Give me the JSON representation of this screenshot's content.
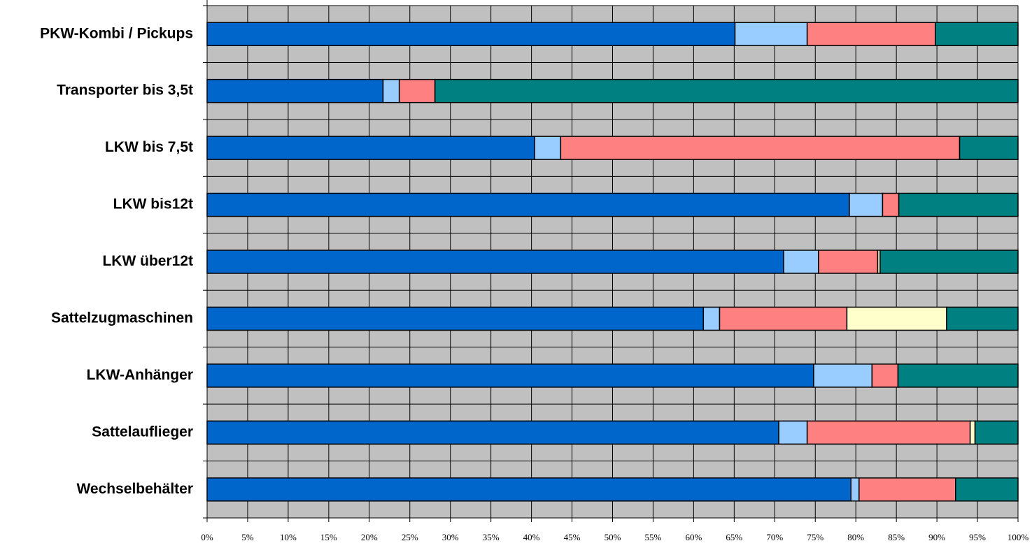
{
  "chart_data": {
    "type": "stacked_barh",
    "categories": [
      "PKW-Kombi / Pickups",
      "Transporter bis 3,5t",
      "LKW bis 7,5t",
      "LKW bis12t",
      "LKW über12t",
      "Sattelzugmaschinen",
      "LKW-Anhänger",
      "Sattelauflieger",
      "Wechselbehälter"
    ],
    "series": [
      {
        "color": "#0066cc",
        "values": [
          65.1,
          21.7,
          40.4,
          79.2,
          71.1,
          61.2,
          74.8,
          70.5,
          79.4
        ]
      },
      {
        "color": "#99ccff",
        "values": [
          8.9,
          2.0,
          3.2,
          4.1,
          4.3,
          2.0,
          7.2,
          3.5,
          1.0
        ]
      },
      {
        "color": "#ff8080",
        "values": [
          15.8,
          4.4,
          49.2,
          2.0,
          7.3,
          15.7,
          3.2,
          20.1,
          11.9
        ]
      },
      {
        "color": "#ffffcc",
        "values": [
          0,
          0,
          0,
          0,
          0.3,
          12.3,
          0,
          0.6,
          0
        ]
      },
      {
        "color": "#008080",
        "values": [
          10.2,
          71.9,
          7.2,
          14.7,
          17.0,
          8.8,
          14.8,
          5.3,
          7.7
        ]
      }
    ],
    "xlim": [
      0,
      100
    ],
    "xticks": [
      {
        "value": 0,
        "label": "0%"
      },
      {
        "value": 5,
        "label": "5%"
      },
      {
        "value": 10,
        "label": "10%"
      },
      {
        "value": 15,
        "label": "15%"
      },
      {
        "value": 20,
        "label": "20%"
      },
      {
        "value": 25,
        "label": "25%"
      },
      {
        "value": 30,
        "label": "30%"
      },
      {
        "value": 35,
        "label": "35%"
      },
      {
        "value": 40,
        "label": "40%"
      },
      {
        "value": 45,
        "label": "45%"
      },
      {
        "value": 50,
        "label": "50%"
      },
      {
        "value": 55,
        "label": "55%"
      },
      {
        "value": 60,
        "label": "60%"
      },
      {
        "value": 65,
        "label": "65%"
      },
      {
        "value": 70,
        "label": "70%"
      },
      {
        "value": 75,
        "label": "75%"
      },
      {
        "value": 80,
        "label": "80%"
      },
      {
        "value": 85,
        "label": "85%"
      },
      {
        "value": 90,
        "label": "90%"
      },
      {
        "value": 95,
        "label": "95%"
      },
      {
        "value": 100,
        "label": "100%"
      }
    ],
    "grid": true,
    "plot_background": "#c0c0c0"
  }
}
